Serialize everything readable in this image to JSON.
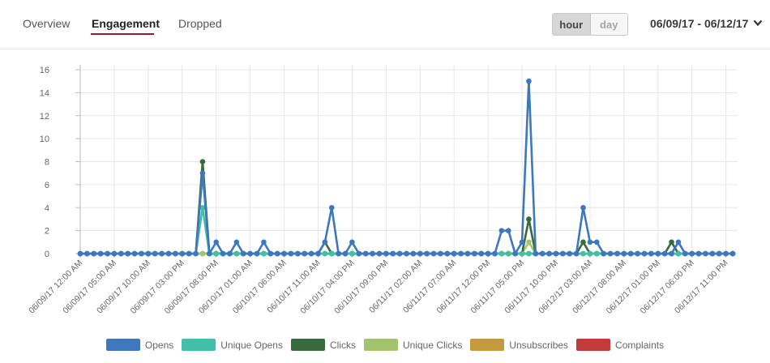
{
  "tabs": [
    {
      "label": "Overview",
      "active": false
    },
    {
      "label": "Engagement",
      "active": true
    },
    {
      "label": "Dropped",
      "active": false
    }
  ],
  "granularity": {
    "options": [
      "hour",
      "day"
    ],
    "selected": "hour"
  },
  "date_range": {
    "label": "06/09/17 - 06/12/17",
    "icon": "chevron-down-icon"
  },
  "colors": {
    "opens": "#3d78bf",
    "unique_opens": "#41bfa8",
    "clicks": "#376a3c",
    "unique_clicks": "#a3c46d",
    "unsubscribes": "#c49a3c",
    "complaints": "#c23b3b",
    "grid": "#e6e6e6",
    "axis_text": "#666666"
  },
  "chart_data": {
    "type": "line",
    "x_start": "06/09/17 12:00 AM",
    "x_step_hours": 1,
    "x_count": 97,
    "x_tick_labels": [
      "06/09/17 12:00 AM",
      "06/09/17 05:00 AM",
      "06/09/17 10:00 AM",
      "06/09/17 03:00 PM",
      "06/09/17 08:00 PM",
      "06/10/17 01:00 AM",
      "06/10/17 06:00 AM",
      "06/10/17 11:00 AM",
      "06/10/17 04:00 PM",
      "06/10/17 09:00 PM",
      "06/11/17 02:00 AM",
      "06/11/17 07:00 AM",
      "06/11/17 12:00 PM",
      "06/11/17 05:00 PM",
      "06/11/17 10:00 PM",
      "06/12/17 03:00 AM",
      "06/12/17 08:00 AM",
      "06/12/17 01:00 PM",
      "06/12/17 06:00 PM",
      "06/12/17 11:00 PM"
    ],
    "ylim": [
      0,
      16
    ],
    "y_ticks": [
      0,
      2,
      4,
      6,
      8,
      10,
      12,
      14,
      16
    ],
    "grid": true,
    "legend_position": "bottom-center",
    "series": [
      {
        "name": "Opens",
        "key": "opens",
        "points": {
          "18": 7,
          "20": 1,
          "23": 1,
          "27": 1,
          "36": 1,
          "37": 4,
          "40": 1,
          "62": 2,
          "63": 2,
          "65": 1,
          "66": 15,
          "74": 4,
          "75": 1,
          "76": 1,
          "88": 1
        }
      },
      {
        "name": "Unique Opens",
        "key": "unique_opens",
        "points": {
          "18": 4
        }
      },
      {
        "name": "Clicks",
        "key": "clicks",
        "points": {
          "18": 8,
          "36": 1,
          "66": 3,
          "74": 1,
          "87": 1
        }
      },
      {
        "name": "Unique Clicks",
        "key": "unique_clicks",
        "points": {
          "66": 1
        }
      },
      {
        "name": "Unsubscribes",
        "key": "unsubscribes",
        "points": {}
      },
      {
        "name": "Complaints",
        "key": "complaints",
        "points": {}
      }
    ]
  },
  "legend": [
    {
      "label": "Opens",
      "key": "opens"
    },
    {
      "label": "Unique Opens",
      "key": "unique_opens"
    },
    {
      "label": "Clicks",
      "key": "clicks"
    },
    {
      "label": "Unique Clicks",
      "key": "unique_clicks"
    },
    {
      "label": "Unsubscribes",
      "key": "unsubscribes"
    },
    {
      "label": "Complaints",
      "key": "complaints"
    }
  ]
}
